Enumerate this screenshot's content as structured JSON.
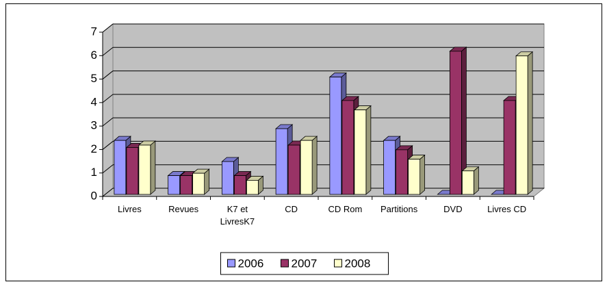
{
  "chart_data": {
    "type": "bar3d",
    "categories": [
      "Livres",
      "Revues",
      "K7 et LivresK7",
      "CD",
      "CD Rom",
      "Partitions",
      "DVD",
      "Livres CD"
    ],
    "series": [
      {
        "name": "2006",
        "color": "#9999ff",
        "values": [
          2.3,
          0.8,
          1.4,
          2.8,
          5.0,
          2.3,
          0,
          0
        ]
      },
      {
        "name": "2007",
        "color": "#993366",
        "values": [
          2.0,
          0.8,
          0.8,
          2.1,
          4.0,
          1.9,
          6.1,
          4.0
        ]
      },
      {
        "name": "2008",
        "color": "#ffffcc",
        "values": [
          2.1,
          0.9,
          0.6,
          2.3,
          3.6,
          1.5,
          1.0,
          5.9
        ]
      }
    ],
    "ylim": [
      0,
      7
    ],
    "yticks": [
      0,
      1,
      2,
      3,
      4,
      5,
      6,
      7
    ],
    "grid": true,
    "legend": "bottom"
  }
}
